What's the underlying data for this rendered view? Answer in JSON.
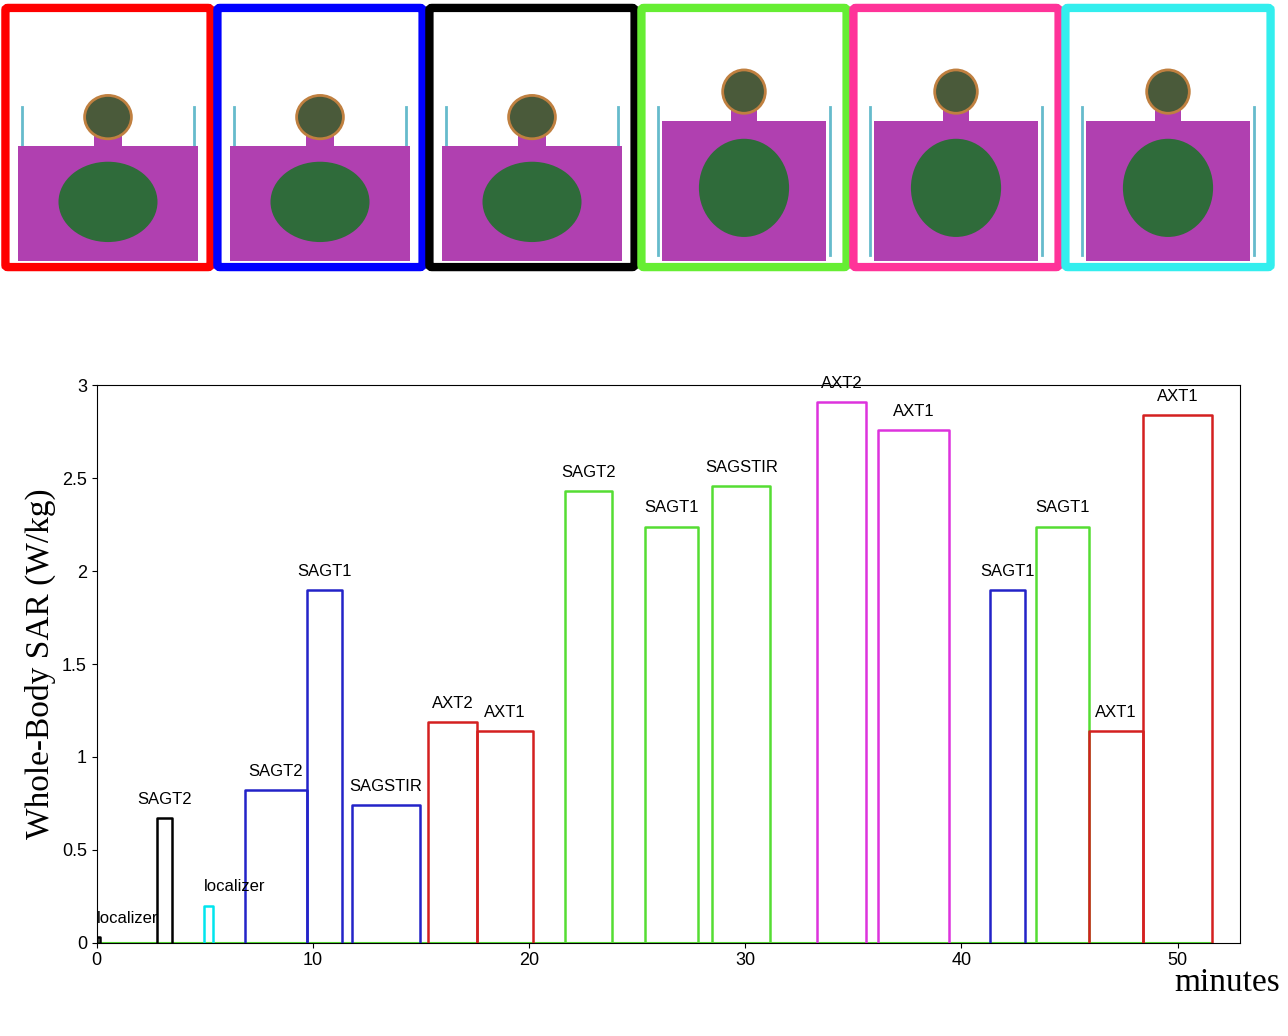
{
  "chart_data": {
    "type": "step",
    "ylabel": "Whole-Body SAR (W/kg)",
    "xlabel": "minutes",
    "xlim": [
      0,
      52.9
    ],
    "xticks": [
      0,
      10,
      20,
      30,
      40,
      50
    ],
    "ylim": [
      0,
      3
    ],
    "yticks": [
      0,
      0.5,
      1,
      1.5,
      2,
      2.5,
      3
    ],
    "grid": false,
    "segments": [
      {
        "label": "localizer",
        "start": 0,
        "end": 0.15,
        "value": 0.03,
        "color": "#000000"
      },
      {
        "label": "SAGT2",
        "start": 2.78,
        "end": 3.47,
        "value": 0.67,
        "color": "#000000"
      },
      {
        "label": "localizer",
        "start": 4.95,
        "end": 5.37,
        "value": 0.2,
        "color": "#00e5ee"
      },
      {
        "label": "SAGT2",
        "start": 6.85,
        "end": 9.72,
        "value": 0.82,
        "color": "#2323c8"
      },
      {
        "label": "SAGT1",
        "start": 9.72,
        "end": 11.34,
        "value": 1.9,
        "color": "#2323c8"
      },
      {
        "label": "SAGSTIR",
        "start": 11.8,
        "end": 14.95,
        "value": 0.74,
        "color": "#2323c8"
      },
      {
        "label": "AXT2",
        "start": 15.32,
        "end": 17.6,
        "value": 1.19,
        "color": "#d42020"
      },
      {
        "label": "AXT1",
        "start": 17.6,
        "end": 20.19,
        "value": 1.14,
        "color": "#d42020"
      },
      {
        "label": "SAGT2",
        "start": 21.67,
        "end": 23.84,
        "value": 2.43,
        "color": "#55dd33"
      },
      {
        "label": "SAGT1",
        "start": 25.37,
        "end": 27.82,
        "value": 2.24,
        "color": "#55dd33"
      },
      {
        "label": "SAGSTIR",
        "start": 28.47,
        "end": 31.16,
        "value": 2.46,
        "color": "#55dd33"
      },
      {
        "label": "AXT2",
        "start": 33.33,
        "end": 35.6,
        "value": 2.91,
        "color": "#dd33dd"
      },
      {
        "label": "AXT1",
        "start": 36.16,
        "end": 39.44,
        "value": 2.76,
        "color": "#dd33dd"
      },
      {
        "label": "SAGT1",
        "start": 41.34,
        "end": 42.92,
        "value": 1.9,
        "color": "#2323c8"
      },
      {
        "label": "SAGT1",
        "start": 43.43,
        "end": 45.88,
        "value": 2.24,
        "color": "#55dd33"
      },
      {
        "label": "AXT1",
        "start": 45.88,
        "end": 48.38,
        "value": 1.14,
        "color": "#d42020"
      },
      {
        "label": "AXT1",
        "start": 48.38,
        "end": 51.6,
        "value": 2.84,
        "color": "#d42020"
      }
    ]
  },
  "model_frames": {
    "colors": [
      "#ff0000",
      "#0000ff",
      "#000000",
      "#66ee33",
      "#ff3399",
      "#33eeee"
    ]
  }
}
